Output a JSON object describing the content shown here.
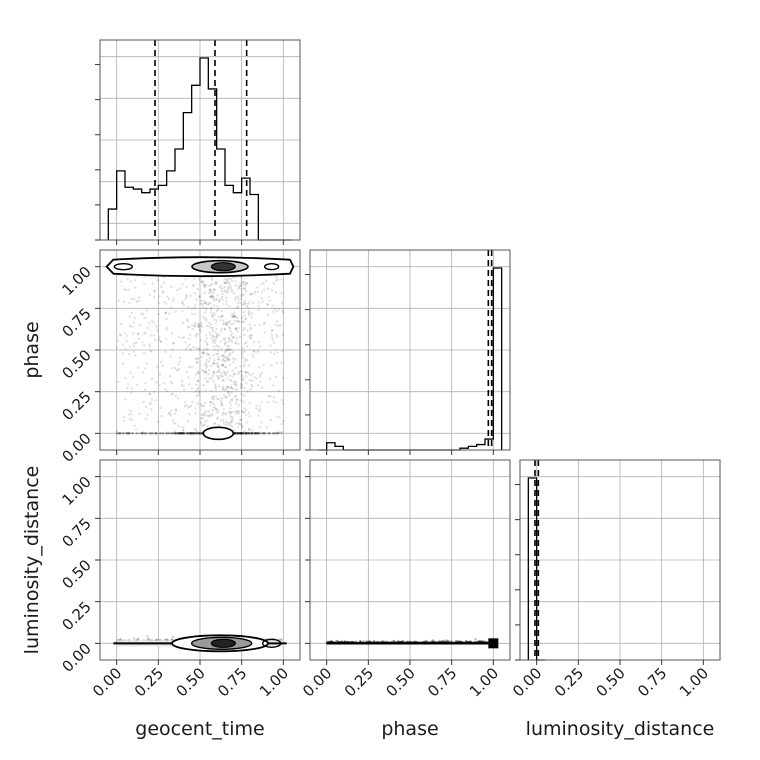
{
  "chart_data": {
    "type": "corner",
    "parameters": [
      "geocent_time",
      "phase",
      "luminosity_distance"
    ],
    "tick_labels": [
      "0.00",
      "0.25",
      "0.50",
      "0.75",
      "1.00"
    ],
    "axis_range": [
      -0.1,
      1.1
    ],
    "grid": true,
    "marginals": [
      {
        "parameter": "geocent_time",
        "bins": [
          -0.05,
          0.0,
          0.05,
          0.1,
          0.15,
          0.2,
          0.25,
          0.3,
          0.35,
          0.4,
          0.45,
          0.5,
          0.55,
          0.6,
          0.65,
          0.7,
          0.75,
          0.8,
          0.85,
          0.9,
          0.95,
          1.0,
          1.05
        ],
        "heights": [
          0.17,
          0.38,
          0.29,
          0.28,
          0.26,
          0.28,
          0.3,
          0.38,
          0.5,
          0.7,
          0.85,
          1.0,
          0.83,
          0.5,
          0.3,
          0.26,
          0.34,
          0.25,
          0.0,
          0.0,
          0.0,
          0.0
        ],
        "quantile_lines": [
          0.23,
          0.59,
          0.78
        ]
      },
      {
        "parameter": "phase",
        "bins": [
          -0.05,
          0.0,
          0.05,
          0.1,
          0.15,
          0.2,
          0.25,
          0.3,
          0.35,
          0.4,
          0.45,
          0.5,
          0.55,
          0.6,
          0.65,
          0.7,
          0.75,
          0.8,
          0.85,
          0.9,
          0.95,
          1.0,
          1.05
        ],
        "heights": [
          0.0,
          0.04,
          0.02,
          0.0,
          0.0,
          0.0,
          0.0,
          0.0,
          0.0,
          0.0,
          0.0,
          0.0,
          0.0,
          0.0,
          0.0,
          0.0,
          0.0,
          0.01,
          0.02,
          0.03,
          0.06,
          1.0
        ],
        "quantile_lines": [
          0.97,
          0.99
        ]
      },
      {
        "parameter": "luminosity_distance",
        "bins": [
          -0.05,
          0.0,
          0.05
        ],
        "heights": [
          1.0,
          0.0
        ],
        "quantile_lines": [
          -0.01,
          0.01
        ]
      }
    ],
    "pair_plots": [
      {
        "x": "geocent_time",
        "y": "phase",
        "description": "scatter with density contours concentrated near phase 1.0 and phase 0.0"
      },
      {
        "x": "geocent_time",
        "y": "luminosity_distance",
        "description": "points concentrated at luminosity_distance 0.0 with contours around geocent_time 0.6-0.7"
      },
      {
        "x": "phase",
        "y": "luminosity_distance",
        "description": "points along luminosity_distance 0.0 with density peak at phase 1.0"
      }
    ]
  }
}
